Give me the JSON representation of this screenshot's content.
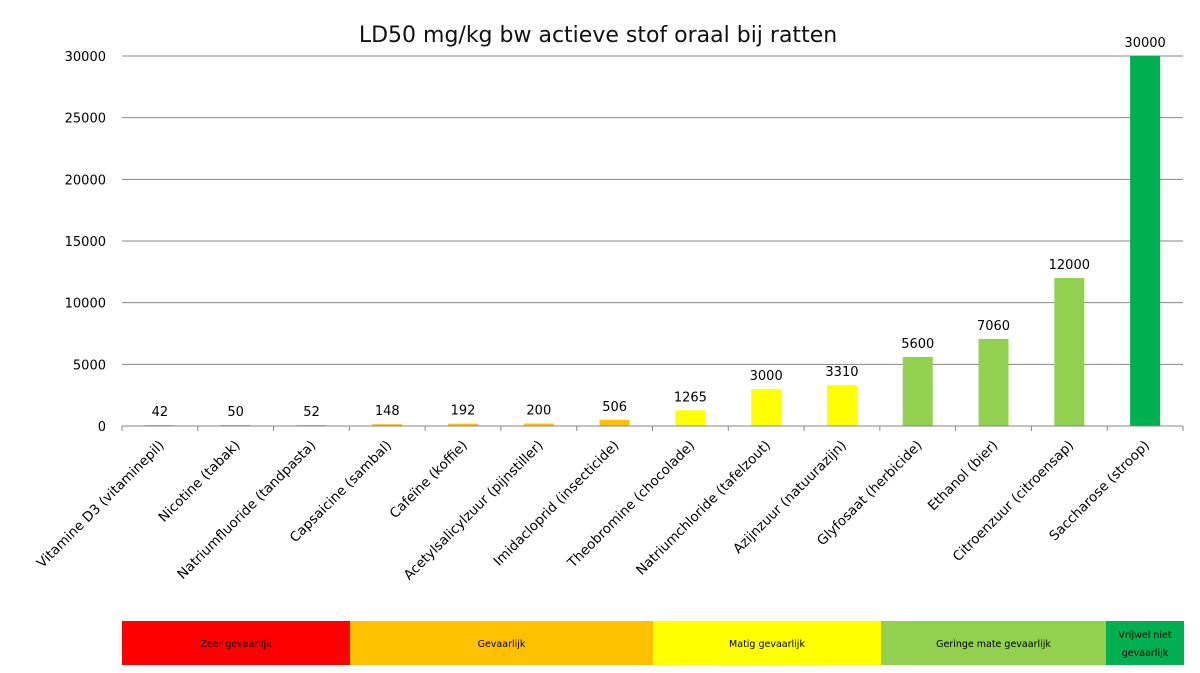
{
  "chart_data": {
    "type": "bar",
    "title": "LD50 mg/kg bw actieve stof oraal bij ratten",
    "xlabel": "",
    "ylabel": "",
    "ylim": [
      0,
      30000
    ],
    "yticks": [
      "0",
      "5000",
      "10000",
      "15000",
      "20000",
      "25000",
      "30000"
    ],
    "categories": [
      "Vitamine D3 (vitaminepil)",
      "Nicotine (tabak)",
      "Natriumfluoride (tandpasta)",
      "Capsaicine (sambal)",
      "Cafeïne (koffie)",
      "Acetylsalicylzuur (pijnstiller)",
      "Imidacloprid (insecticide)",
      "Theobromine (chocolade)",
      "Natriumchloride (tafelzout)",
      "Azijnzuur (natuurazijn)",
      "Glyfosaat (herbicide)",
      "Ethanol (bier)",
      "Citroenzuur (citroensap)",
      "Saccharose (stroop)"
    ],
    "values": [
      42,
      50,
      52,
      148,
      192,
      200,
      506,
      1265,
      3000,
      3310,
      5600,
      7060,
      12000,
      30000
    ],
    "value_labels": [
      "42",
      "50",
      "52",
      "148",
      "192",
      "200",
      "506",
      "1265",
      "3000",
      "3310",
      "5600",
      "7060",
      "12000",
      "30000"
    ],
    "bar_colors": [
      "#ff9999",
      "#ff9999",
      "#ff9999",
      "#ffc000",
      "#ffc000",
      "#ffc000",
      "#ffc000",
      "#ffff00",
      "#ffff00",
      "#ffff00",
      "#92d050",
      "#92d050",
      "#92d050",
      "#00b050"
    ],
    "grid": true,
    "legend": [
      {
        "label": "Zeer gevaarlijk",
        "color": "#ff0000",
        "lines": [
          "Zeer gevaarlijk"
        ]
      },
      {
        "label": "Gevaarlijk",
        "color": "#ffc000",
        "lines": [
          "Gevaarlijk"
        ]
      },
      {
        "label": "Matig gevaarlijk",
        "color": "#ffff00",
        "lines": [
          "Matig gevaarlijk"
        ]
      },
      {
        "label": "Geringe mate gevaarlijk",
        "color": "#92d050",
        "lines": [
          "Geringe mate gevaarlijk"
        ]
      },
      {
        "label": "Vrijwel niet gevaarlijk",
        "color": "#00b050",
        "lines": [
          "Vrijwel niet",
          "gevaarlijk"
        ]
      }
    ],
    "legend_placement": "bottom"
  }
}
